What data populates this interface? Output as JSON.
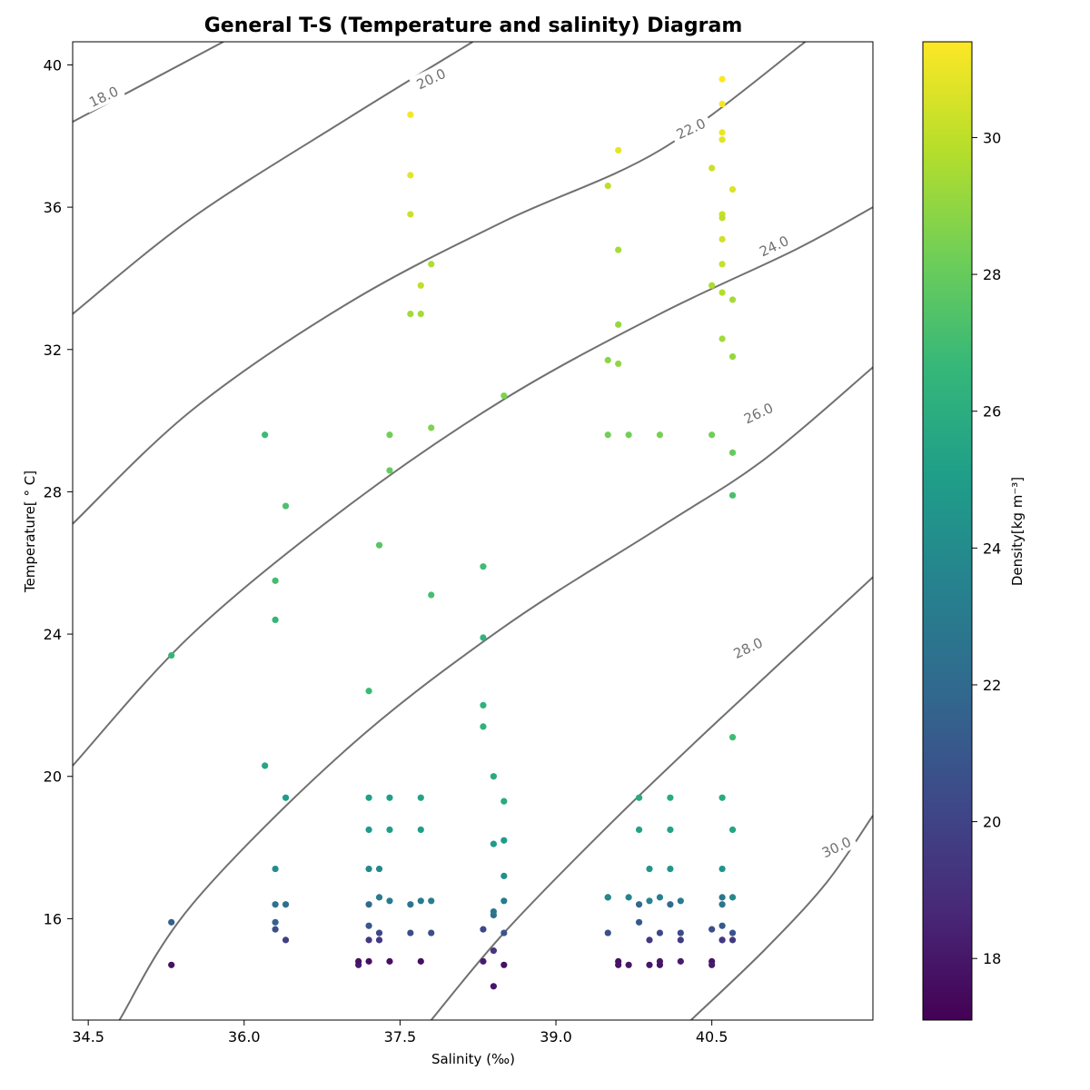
{
  "chart_data": {
    "type": "scatter",
    "title": "General T-S (Temperature and salinity) Diagram",
    "xlabel": "Salinity (‰)",
    "ylabel": "Temperature[$^\\circ$C]",
    "ylabel_display": "Temperature[ ° C]",
    "xlim": [
      34.35,
      42.05
    ],
    "ylim": [
      13.15,
      40.65
    ],
    "x_ticks": [
      34.5,
      36.0,
      37.5,
      39.0,
      40.5
    ],
    "x_tick_labels": [
      "34.5",
      "36.0",
      "37.5",
      "39.0",
      "40.5"
    ],
    "y_ticks": [
      16,
      20,
      24,
      28,
      32,
      36,
      40
    ],
    "y_tick_labels": [
      "16",
      "20",
      "24",
      "28",
      "32",
      "36",
      "40"
    ],
    "grid": false,
    "colorbar": {
      "label": "Density[kg m$^{-3}$]",
      "label_display": "Density[kg m⁻³]",
      "range": [
        17.1,
        31.4
      ],
      "ticks": [
        18,
        20,
        22,
        24,
        26,
        28,
        30
      ],
      "tick_labels": [
        "18",
        "20",
        "22",
        "24",
        "26",
        "28",
        "30"
      ],
      "colormap": "viridis",
      "colors": [
        "#440154",
        "#482878",
        "#3e4989",
        "#31688e",
        "#26828e",
        "#1f9e89",
        "#35b779",
        "#6ece58",
        "#b5de2b",
        "#fde725"
      ]
    },
    "contours": {
      "color": "#707070",
      "levels": [
        {
          "label": "18.0",
          "points": [
            [
              34.35,
              38.4
            ],
            [
              35.8,
              40.65
            ]
          ],
          "label_at": [
            34.65,
            39.1
          ]
        },
        {
          "label": "20.0",
          "points": [
            [
              34.35,
              33.0
            ],
            [
              35.5,
              35.7
            ],
            [
              37.0,
              38.5
            ],
            [
              38.2,
              40.65
            ]
          ],
          "label_at": [
            37.8,
            39.6
          ]
        },
        {
          "label": "22.0",
          "points": [
            [
              34.35,
              27.1
            ],
            [
              35.5,
              30.3
            ],
            [
              37.0,
              33.3
            ],
            [
              38.5,
              35.6
            ],
            [
              40.0,
              37.6
            ],
            [
              41.4,
              40.65
            ]
          ],
          "label_at": [
            40.3,
            38.2
          ]
        },
        {
          "label": "24.0",
          "points": [
            [
              34.35,
              20.3
            ],
            [
              35.5,
              24.0
            ],
            [
              37.0,
              27.6
            ],
            [
              38.5,
              30.6
            ],
            [
              40.0,
              33.0
            ],
            [
              41.3,
              34.8
            ],
            [
              42.05,
              36.0
            ]
          ],
          "label_at": [
            41.1,
            34.9
          ]
        },
        {
          "label": "26.0",
          "points": [
            [
              34.8,
              13.15
            ],
            [
              35.5,
              16.4
            ],
            [
              37.0,
              20.8
            ],
            [
              38.5,
              24.2
            ],
            [
              40.0,
              27.0
            ],
            [
              41.0,
              28.9
            ],
            [
              42.05,
              31.5
            ]
          ],
          "label_at": [
            40.95,
            30.2
          ]
        },
        {
          "label": "28.0",
          "points": [
            [
              37.8,
              13.15
            ],
            [
              38.5,
              15.6
            ],
            [
              39.5,
              18.6
            ],
            [
              40.5,
              21.4
            ],
            [
              42.05,
              25.6
            ]
          ],
          "label_at": [
            40.85,
            23.6
          ]
        },
        {
          "label": "30.0",
          "points": [
            [
              40.3,
              13.15
            ],
            [
              41.0,
              15.1
            ],
            [
              41.6,
              17.0
            ],
            [
              42.05,
              18.9
            ]
          ],
          "label_at": [
            41.7,
            18.0
          ]
        }
      ]
    },
    "series": [
      {
        "x": [
          35.3,
          35.3,
          35.3,
          36.2,
          36.2,
          36.3,
          36.3,
          36.3,
          36.3,
          36.3,
          36.3,
          36.4,
          36.4,
          36.4,
          36.4,
          37.1,
          37.1,
          37.2,
          37.2,
          37.2,
          37.2,
          37.2,
          37.2,
          37.2,
          37.2,
          37.3,
          37.3,
          37.3,
          37.3,
          37.3,
          37.4,
          37.4,
          37.4,
          37.4,
          37.4,
          37.4,
          37.6,
          37.6,
          37.6,
          37.6,
          37.6,
          37.6,
          37.7,
          37.7,
          37.7,
          37.7,
          37.7,
          37.7,
          37.8,
          37.8,
          37.8,
          37.8,
          37.8,
          38.3,
          38.3,
          38.3,
          38.3,
          38.3,
          38.3,
          38.4,
          38.4,
          38.4,
          38.4,
          38.4,
          38.4,
          38.5,
          38.5,
          38.5,
          38.5,
          38.5,
          38.5,
          38.5,
          39.5,
          39.5,
          39.5,
          39.5,
          39.5,
          39.5,
          39.6,
          39.6,
          39.6,
          39.6,
          39.6,
          39.6,
          39.7,
          39.7,
          39.7,
          39.8,
          39.8,
          39.8,
          39.8,
          39.9,
          39.9,
          39.9,
          39.9,
          40.0,
          40.0,
          40.0,
          40.0,
          40.0,
          40.1,
          40.1,
          40.1,
          40.1,
          40.2,
          40.2,
          40.2,
          40.2,
          40.5,
          40.5,
          40.5,
          40.5,
          40.5,
          40.5,
          40.6,
          40.6,
          40.6,
          40.6,
          40.6,
          40.6,
          40.6,
          40.6,
          40.6,
          40.6,
          40.6,
          40.6,
          40.6,
          40.6,
          40.6,
          40.6,
          40.6,
          40.7,
          40.7,
          40.7,
          40.7,
          40.7,
          40.7,
          40.7,
          40.7,
          40.7,
          40.7
        ],
        "y": [
          23.4,
          15.9,
          14.7,
          29.6,
          20.3,
          25.5,
          24.4,
          17.4,
          16.4,
          15.9,
          15.7,
          27.6,
          19.4,
          16.4,
          15.4,
          14.7,
          14.8,
          19.4,
          18.5,
          17.4,
          16.4,
          15.8,
          15.4,
          14.8,
          22.4,
          26.5,
          17.4,
          16.6,
          15.6,
          15.4,
          29.6,
          28.6,
          19.4,
          18.5,
          16.5,
          14.8,
          38.6,
          36.9,
          33.0,
          16.4,
          15.6,
          35.8,
          33.8,
          33.0,
          19.4,
          18.5,
          16.5,
          14.8,
          34.4,
          29.8,
          25.1,
          16.5,
          15.6,
          25.9,
          23.9,
          22.0,
          21.4,
          15.7,
          14.8,
          20.0,
          18.1,
          16.1,
          15.1,
          14.1,
          16.2,
          30.7,
          19.3,
          18.2,
          17.2,
          16.5,
          15.6,
          14.7,
          31.7,
          29.6,
          16.6,
          16.6,
          15.6,
          36.6,
          32.7,
          31.6,
          14.8,
          14.7,
          37.6,
          34.8,
          29.6,
          16.6,
          14.7,
          19.4,
          18.5,
          16.4,
          15.9,
          17.4,
          16.5,
          15.4,
          14.7,
          29.6,
          16.6,
          15.6,
          14.8,
          14.7,
          19.4,
          18.5,
          17.4,
          16.4,
          16.5,
          15.6,
          15.4,
          14.8,
          37.1,
          33.8,
          29.6,
          15.7,
          14.8,
          14.7,
          39.6,
          38.9,
          38.1,
          37.9,
          35.8,
          33.6,
          32.3,
          17.4,
          16.4,
          15.8,
          15.4,
          15.4,
          35.7,
          35.1,
          34.4,
          19.4,
          16.6,
          36.5,
          31.8,
          29.1,
          18.5,
          15.4,
          33.4,
          27.9,
          21.1,
          16.6,
          15.6
        ],
        "density": [
          26.5,
          21.5,
          17.8,
          26.8,
          25.5,
          27.0,
          26.6,
          24.0,
          22.5,
          21.5,
          20.5,
          27.3,
          25.0,
          22.3,
          19.8,
          18.2,
          17.8,
          25.2,
          24.8,
          23.8,
          22.0,
          21.0,
          19.5,
          17.7,
          26.8,
          27.6,
          23.8,
          23.0,
          20.2,
          19.5,
          28.3,
          28.0,
          25.2,
          25.1,
          23.0,
          17.7,
          31.2,
          30.8,
          29.4,
          22.6,
          20.5,
          30.3,
          30.0,
          29.5,
          25.4,
          25.1,
          23.0,
          17.7,
          29.7,
          28.6,
          27.1,
          23.2,
          20.5,
          26.9,
          26.3,
          26.3,
          26.2,
          20.2,
          18.2,
          25.8,
          24.9,
          22.3,
          19.4,
          18.0,
          22.7,
          28.6,
          25.8,
          25.0,
          24.2,
          23.1,
          20.8,
          17.7,
          28.9,
          28.3,
          23.7,
          23.8,
          20.6,
          30.0,
          29.1,
          29.0,
          17.8,
          17.9,
          30.9,
          29.5,
          28.3,
          23.5,
          18.0,
          25.8,
          25.3,
          22.0,
          21.1,
          24.6,
          23.5,
          19.5,
          18.0,
          28.4,
          23.4,
          20.2,
          18.0,
          17.9,
          25.8,
          25.3,
          24.6,
          22.0,
          23.1,
          20.4,
          19.6,
          18.2,
          30.3,
          29.6,
          28.3,
          20.5,
          17.9,
          18.1,
          31.4,
          31.2,
          31.0,
          30.8,
          30.2,
          29.8,
          29.4,
          24.5,
          22.7,
          21.2,
          19.6,
          19.5,
          30.0,
          30.4,
          30.2,
          25.8,
          22.8,
          30.7,
          29.1,
          28.0,
          25.5,
          19.5,
          29.5,
          27.2,
          26.9,
          23.8,
          20.8
        ]
      }
    ]
  }
}
